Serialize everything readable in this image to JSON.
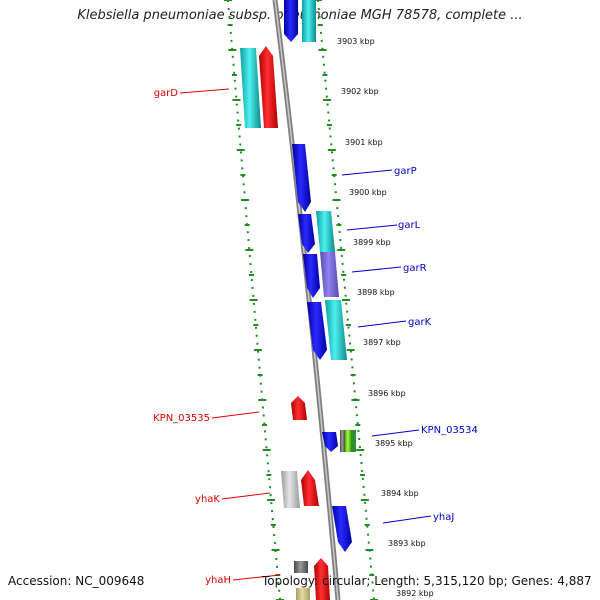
{
  "title": "Klebsiella pneumoniae subsp. pneumoniae MGH 78578, complete ...",
  "accession": "Accession: NC_009648",
  "summary": "Topology: circular; Length: 5,315,120 bp; Genes: 4,887",
  "colors": {
    "forward_label": "#dd0000",
    "reverse_label": "#0000cc",
    "tick": "#228b22",
    "backbone": "#7f7f7f"
  },
  "kbp_ticks": [
    "3903 kbp",
    "3902 kbp",
    "3901 kbp",
    "3900 kbp",
    "3899 kbp",
    "3898 kbp",
    "3897 kbp",
    "3896 kbp",
    "3895 kbp",
    "3894 kbp",
    "3893 kbp",
    "3892 kbp"
  ],
  "genes": [
    {
      "label": "garD",
      "strand": "forward"
    },
    {
      "label": "garP",
      "strand": "reverse"
    },
    {
      "label": "garL",
      "strand": "reverse"
    },
    {
      "label": "garR",
      "strand": "reverse"
    },
    {
      "label": "garK",
      "strand": "reverse"
    },
    {
      "label": "KPN_03535",
      "strand": "forward"
    },
    {
      "label": "KPN_03534",
      "strand": "reverse"
    },
    {
      "label": "yhaK",
      "strand": "forward"
    },
    {
      "label": "yhaJ",
      "strand": "reverse"
    },
    {
      "label": "yhaH",
      "strand": "forward"
    }
  ]
}
